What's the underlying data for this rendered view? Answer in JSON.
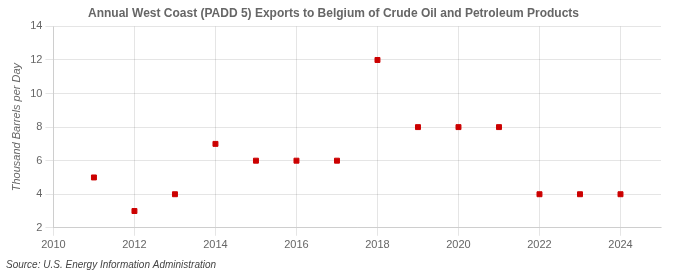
{
  "chart_data": {
    "type": "scatter",
    "title": "Annual West Coast (PADD 5) Exports to Belgium of Crude Oil and Petroleum Products",
    "y_label": "Thousand Barrels per Day",
    "annotation": "Source: U.S. Energy Information Administration",
    "x": [
      2011,
      2012,
      2013,
      2014,
      2015,
      2016,
      2017,
      2018,
      2019,
      2020,
      2021,
      2022,
      2023,
      2024
    ],
    "values": [
      5,
      3,
      4,
      7,
      6,
      6,
      6,
      12,
      8,
      8,
      8,
      4,
      4,
      4
    ],
    "color": "#cc0000",
    "marker": "square",
    "xlim": [
      2010,
      2025
    ],
    "xticks": [
      2010,
      2012,
      2014,
      2016,
      2018,
      2020,
      2022,
      2024
    ],
    "ylim": [
      2,
      14
    ],
    "yticks": [
      2,
      4,
      6,
      8,
      10,
      12,
      14
    ],
    "grid": true
  }
}
